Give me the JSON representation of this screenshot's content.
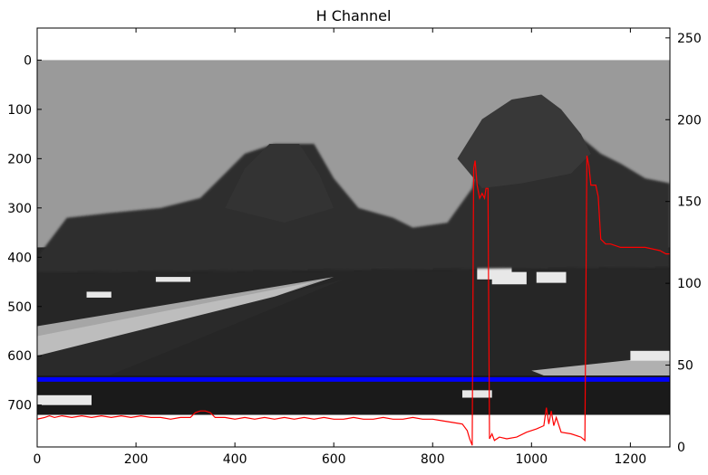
{
  "chart_data": {
    "type": "line",
    "title": "H Channel",
    "image_shading": "grayscale hue-channel image of a road scene: light gray sky, dark tree silhouettes, dark road surface, white patches, black band at bottom",
    "x_axis": {
      "ticks": [
        0,
        200,
        400,
        600,
        800,
        1000,
        1200
      ],
      "range": [
        0,
        1280
      ]
    },
    "y_axis_left": {
      "ticks": [
        0,
        100,
        200,
        300,
        400,
        500,
        600,
        700
      ],
      "range": [
        785,
        -65
      ],
      "inverted": true
    },
    "y_axis_right": {
      "ticks": [
        0,
        50,
        100,
        150,
        200,
        250
      ],
      "range": [
        0,
        256
      ]
    },
    "markers": [
      {
        "name": "horizontal line",
        "y": 648,
        "color": "#0000ff"
      }
    ],
    "series": [
      {
        "axis": "right",
        "color": "#ff0000",
        "points": [
          [
            0,
            17
          ],
          [
            15,
            18
          ],
          [
            25,
            19
          ],
          [
            35,
            18
          ],
          [
            50,
            19
          ],
          [
            70,
            18
          ],
          [
            90,
            19
          ],
          [
            110,
            18
          ],
          [
            130,
            19
          ],
          [
            150,
            18
          ],
          [
            170,
            19
          ],
          [
            190,
            18
          ],
          [
            210,
            19
          ],
          [
            230,
            18
          ],
          [
            250,
            18
          ],
          [
            270,
            17
          ],
          [
            290,
            18
          ],
          [
            310,
            18
          ],
          [
            320,
            21
          ],
          [
            330,
            22
          ],
          [
            340,
            22
          ],
          [
            350,
            21
          ],
          [
            360,
            18
          ],
          [
            380,
            18
          ],
          [
            400,
            17
          ],
          [
            420,
            18
          ],
          [
            440,
            17
          ],
          [
            460,
            18
          ],
          [
            480,
            17
          ],
          [
            500,
            18
          ],
          [
            520,
            17
          ],
          [
            540,
            18
          ],
          [
            560,
            17
          ],
          [
            580,
            18
          ],
          [
            600,
            17
          ],
          [
            620,
            17
          ],
          [
            640,
            18
          ],
          [
            660,
            17
          ],
          [
            680,
            17
          ],
          [
            700,
            18
          ],
          [
            720,
            17
          ],
          [
            740,
            17
          ],
          [
            760,
            18
          ],
          [
            780,
            17
          ],
          [
            800,
            17
          ],
          [
            820,
            16
          ],
          [
            840,
            15
          ],
          [
            860,
            14
          ],
          [
            870,
            10
          ],
          [
            875,
            5
          ],
          [
            880,
            1
          ],
          [
            883,
            170
          ],
          [
            886,
            175
          ],
          [
            890,
            160
          ],
          [
            895,
            152
          ],
          [
            900,
            155
          ],
          [
            905,
            152
          ],
          [
            908,
            158
          ],
          [
            912,
            158
          ],
          [
            915,
            5
          ],
          [
            920,
            8
          ],
          [
            925,
            4
          ],
          [
            935,
            6
          ],
          [
            950,
            5
          ],
          [
            970,
            6
          ],
          [
            990,
            9
          ],
          [
            1010,
            11
          ],
          [
            1025,
            13
          ],
          [
            1030,
            24
          ],
          [
            1035,
            14
          ],
          [
            1040,
            22
          ],
          [
            1045,
            13
          ],
          [
            1050,
            18
          ],
          [
            1060,
            9
          ],
          [
            1080,
            8
          ],
          [
            1100,
            6
          ],
          [
            1108,
            4
          ],
          [
            1112,
            178
          ],
          [
            1116,
            172
          ],
          [
            1120,
            160
          ],
          [
            1130,
            160
          ],
          [
            1135,
            153
          ],
          [
            1140,
            127
          ],
          [
            1150,
            124
          ],
          [
            1160,
            124
          ],
          [
            1180,
            122
          ],
          [
            1200,
            122
          ],
          [
            1230,
            122
          ],
          [
            1260,
            120
          ],
          [
            1272,
            118
          ],
          [
            1280,
            118
          ]
        ]
      }
    ]
  }
}
